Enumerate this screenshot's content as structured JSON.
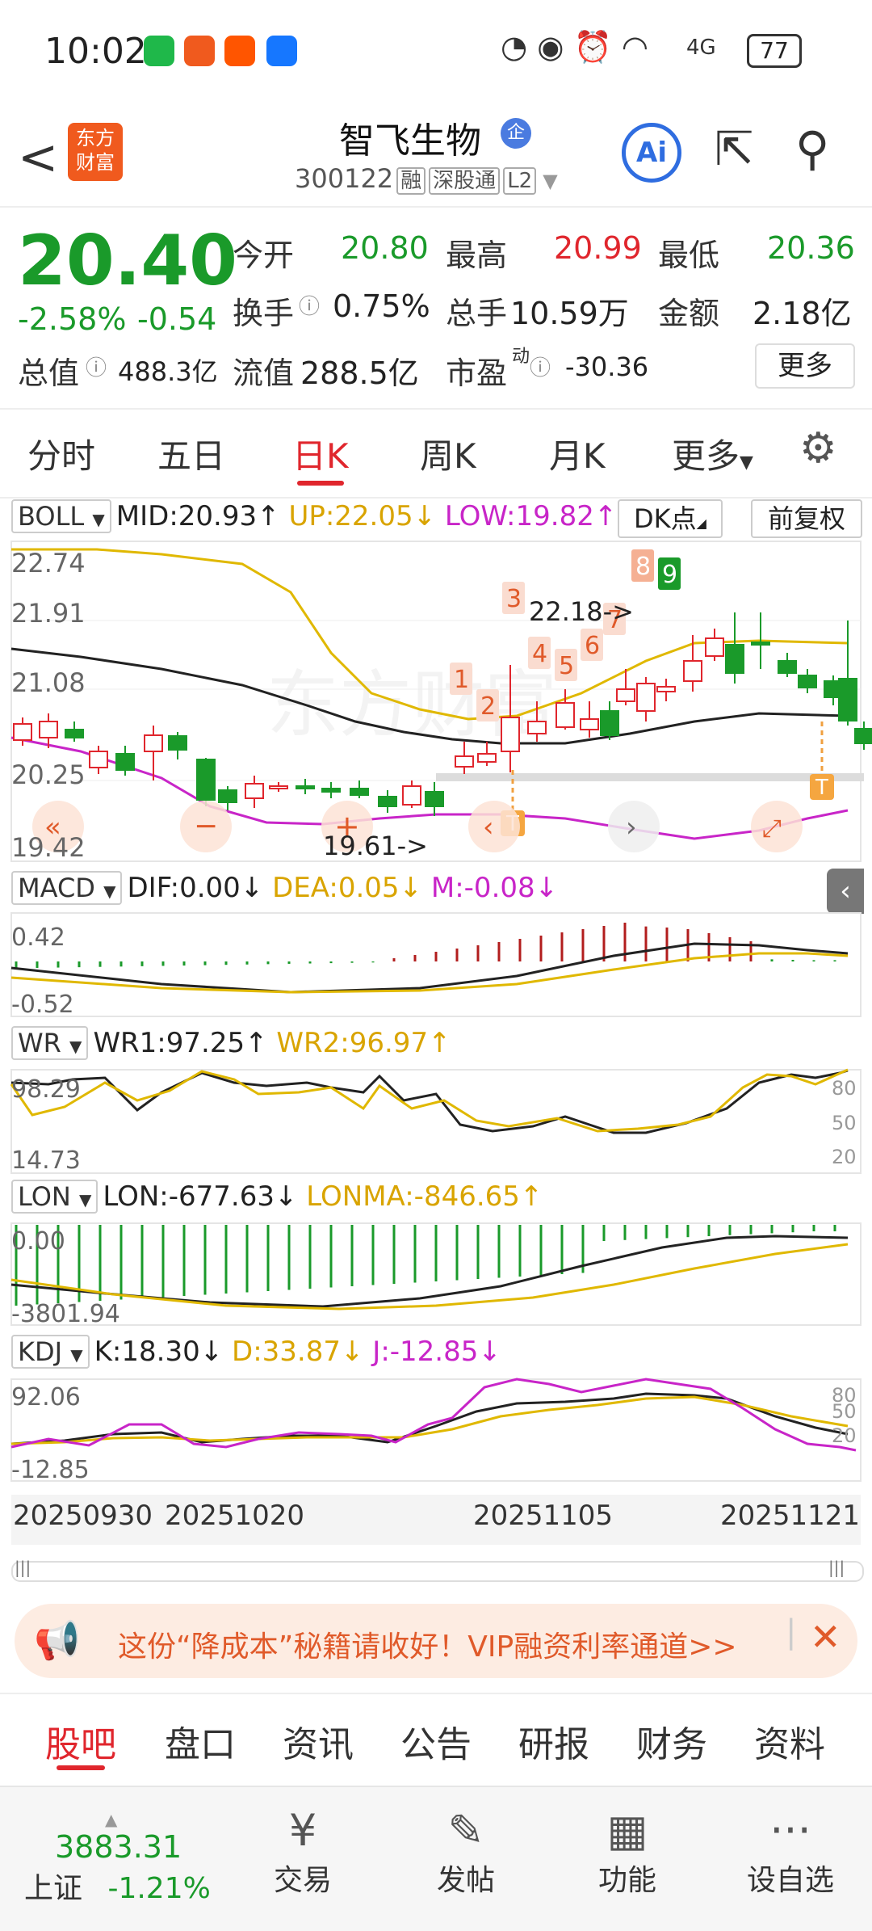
{
  "status_bar": {
    "time": "10:02",
    "battery": "77",
    "signal": "4G"
  },
  "header": {
    "back": "<",
    "logo_line1": "东方",
    "logo_line2": "财富",
    "stock_name": "智飞生物",
    "badge": "企",
    "code": "300122",
    "tags": [
      "融",
      "深股通",
      "L2"
    ],
    "ai": "Ai"
  },
  "quote": {
    "price": "20.40",
    "change_pct": "-2.58%",
    "change": "-0.54",
    "open_label": "今开",
    "open": "20.80",
    "high_label": "最高",
    "high": "20.99",
    "low_label": "最低",
    "low": "20.36",
    "turnover_label": "换手",
    "turnover": "0.75%",
    "volume_label": "总手",
    "volume": "10.59万",
    "amount_label": "金额",
    "amount": "2.18亿",
    "mktcap_label": "总值",
    "mktcap": "488.3亿",
    "float_label": "流值",
    "float": "288.5亿",
    "pe_label": "市盈",
    "pe_sup": "动",
    "pe": "-30.36",
    "more": "更多"
  },
  "tabs": [
    "分时",
    "五日",
    "日K",
    "周K",
    "月K",
    "更多"
  ],
  "boll": {
    "name": "BOLL",
    "mid": "MID:20.93↑",
    "up": "UP:22.05↓",
    "low": "LOW:19.82↑",
    "dk": "DK点",
    "fq": "前复权",
    "axis": [
      "22.74",
      "21.91",
      "21.08",
      "20.25",
      "19.42"
    ],
    "hi_note": "22.18->",
    "lo_note": "19.61->",
    "nums": [
      "1",
      "2",
      "3",
      "4",
      "5",
      "6",
      "7",
      "8",
      "9"
    ],
    "t_mark": "T",
    "watermark": "东方财富"
  },
  "macd": {
    "name": "MACD",
    "dif": "DIF:0.00↓",
    "dea": "DEA:0.05↓",
    "m": "M:-0.08↓",
    "axis": [
      "0.42",
      "-0.52"
    ]
  },
  "wr": {
    "name": "WR",
    "wr1": "WR1:97.25↑",
    "wr2": "WR2:96.97↑",
    "axis": [
      "98.29",
      "14.73"
    ],
    "right": [
      "80",
      "50",
      "20"
    ]
  },
  "lon": {
    "name": "LON",
    "lon": "LON:-677.63↓",
    "lonma": "LONMA:-846.65↑",
    "axis": [
      "0.00",
      "-3801.94"
    ]
  },
  "kdj": {
    "name": "KDJ",
    "k": "K:18.30↓",
    "d": "D:33.87↓",
    "j": "J:-12.85↓",
    "axis": [
      "92.06",
      "-12.85"
    ],
    "right": [
      "80",
      "50",
      "20"
    ]
  },
  "dates": [
    "20250930",
    "20251020",
    "20251105",
    "20251121"
  ],
  "banner": {
    "text": "这份“降成本”秘籍请收好！VIP融资利率通道>>"
  },
  "bottom_tabs": [
    "股吧",
    "盘口",
    "资讯",
    "公告",
    "研报",
    "财务",
    "资料"
  ],
  "bottom_nav": {
    "index_value": "3883.31",
    "index_name": "上证",
    "index_change": "-1.21%",
    "items": [
      {
        "icon": "¥",
        "label": "交易"
      },
      {
        "icon": "✎",
        "label": "发帖"
      },
      {
        "icon": "▦",
        "label": "功能"
      },
      {
        "icon": "···",
        "label": "设自选"
      }
    ]
  },
  "colors": {
    "up": "#e0262d",
    "down": "#1a9a2a",
    "mid": "#222222",
    "upper": "#e0b800",
    "lower": "#c825c8"
  }
}
